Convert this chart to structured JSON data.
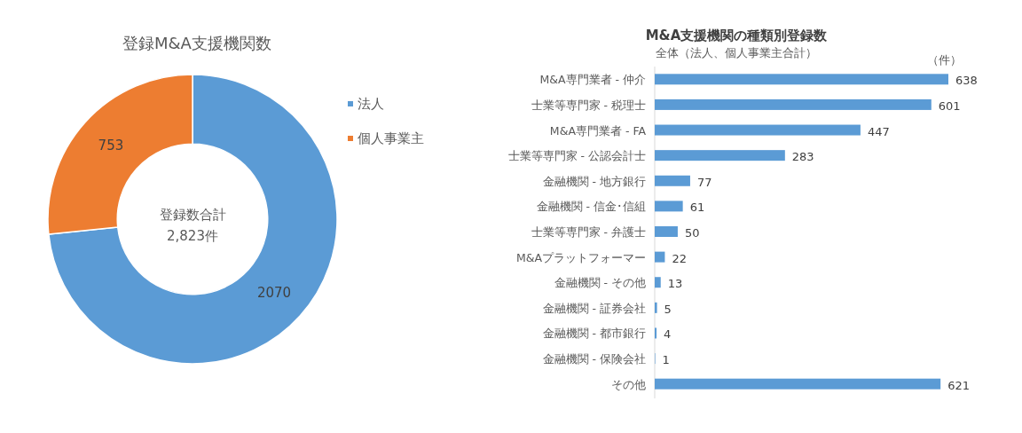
{
  "chart_data": [
    {
      "type": "donut",
      "title": "登録M&A支援機関数",
      "categories": [
        "法人",
        "個人事業主"
      ],
      "values": [
        2070,
        753
      ],
      "colors": [
        "#5b9bd5",
        "#ed7d31"
      ],
      "data_labels": true,
      "legend": "right",
      "annotations": [
        "登録数合計",
        "2,823件"
      ]
    },
    {
      "type": "bar",
      "orientation": "horizontal",
      "title": "M&A支援機関の種類別登録数",
      "subtitle": "全体（法人、個人事業主合計）",
      "xlabel": "（件）",
      "categories": [
        "M&A専門業者 - 仲介",
        "士業等専門家 - 税理士",
        "M&A専門業者 - FA",
        "士業等専門家 - 公認会計士",
        "金融機関 - 地方銀行",
        "金融機関 - 信金･信組",
        "士業等専門家 - 弁護士",
        "M&Aプラットフォーマー",
        "金融機関 - その他",
        "金融機関 - 証券会社",
        "金融機関 - 都市銀行",
        "金融機関 - 保険会社",
        "その他"
      ],
      "values": [
        638,
        601,
        447,
        283,
        77,
        61,
        50,
        22,
        13,
        5,
        4,
        1,
        621
      ],
      "color": "#5b9bd5",
      "data_labels": true
    }
  ]
}
